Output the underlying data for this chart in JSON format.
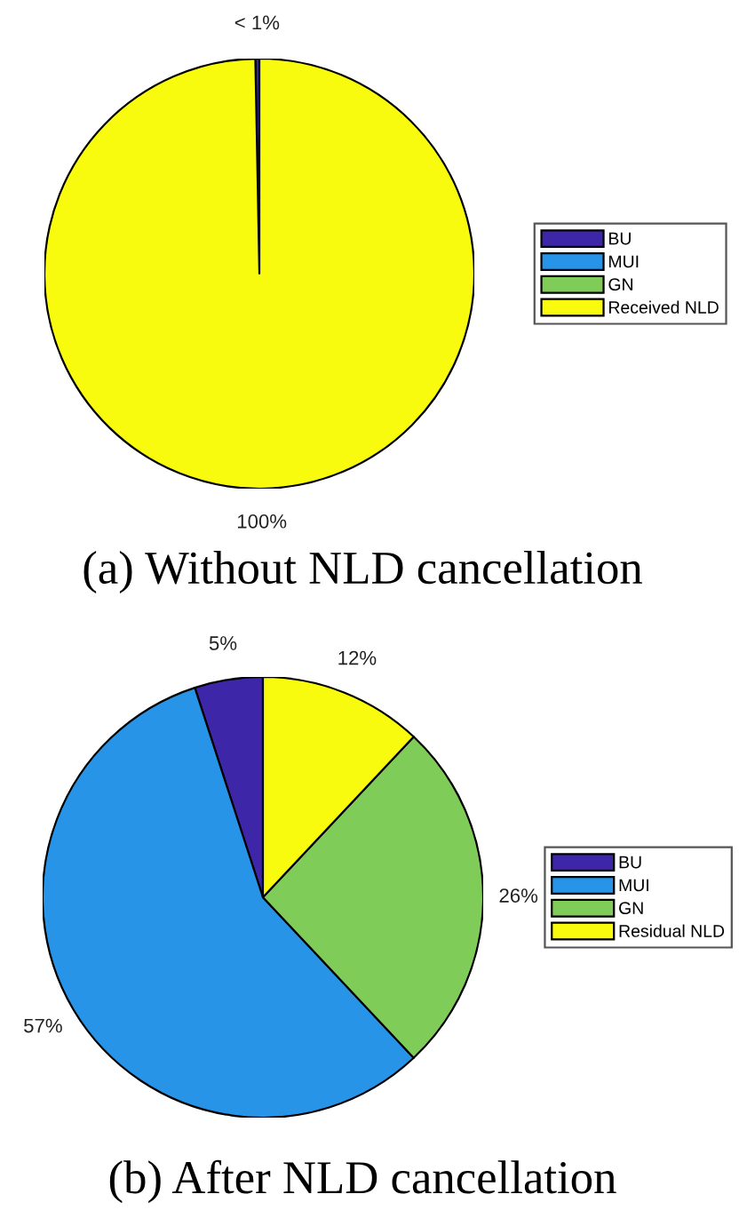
{
  "chart_data": [
    {
      "type": "pie",
      "title": "(a) Without NLD cancellation",
      "categories": [
        "BU",
        "MUI",
        "GN",
        "Received NLD"
      ],
      "values": [
        0.3,
        0,
        0,
        99.7
      ],
      "value_labels": [
        "< 1%",
        null,
        null,
        "100%"
      ],
      "colors": [
        "#3e26a8",
        "#2894e8",
        "#80cc59",
        "#f9fb0e"
      ],
      "legend": "right"
    },
    {
      "type": "pie",
      "title": "(b) After NLD cancellation",
      "categories": [
        "BU",
        "MUI",
        "GN",
        "Residual NLD"
      ],
      "values": [
        5,
        57,
        26,
        12
      ],
      "value_labels": [
        "5%",
        "57%",
        "26%",
        "12%"
      ],
      "colors": [
        "#3e26a8",
        "#2894e8",
        "#80cc59",
        "#f9fb0e"
      ],
      "legend": "right"
    }
  ]
}
